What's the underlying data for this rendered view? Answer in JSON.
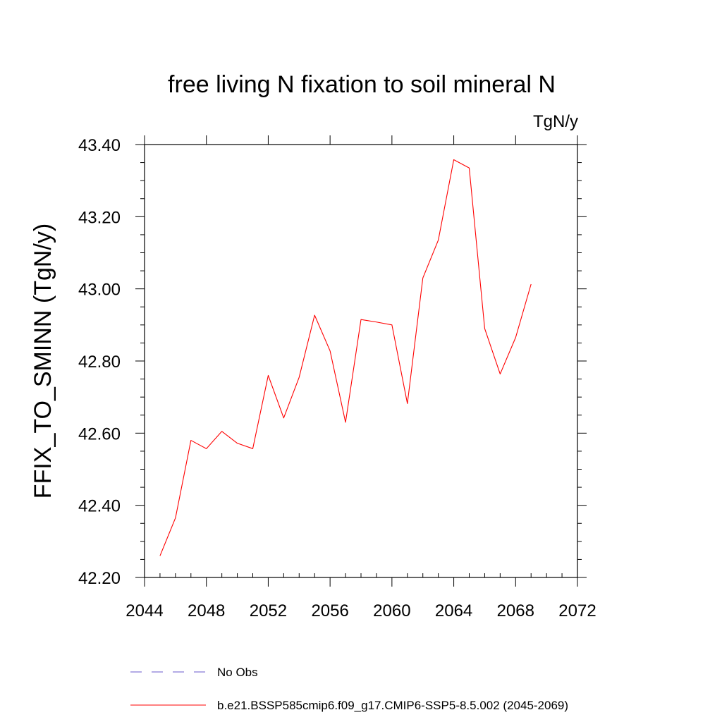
{
  "chart_data": {
    "type": "line",
    "title": "free living N fixation to soil mineral N",
    "units": "TgN/y",
    "ylabel": "FFIX_TO_SMINN  (TgN/y)",
    "xlabel": "",
    "xlim": [
      2044,
      2072
    ],
    "ylim": [
      42.2,
      43.4
    ],
    "x_ticks": [
      "2044",
      "2048",
      "2052",
      "2056",
      "2060",
      "2064",
      "2068",
      "2072"
    ],
    "y_ticks": [
      "42.20",
      "42.40",
      "42.60",
      "42.80",
      "43.00",
      "43.20",
      "43.40"
    ],
    "x_tick_values": [
      2044,
      2048,
      2052,
      2056,
      2060,
      2064,
      2068,
      2072
    ],
    "y_tick_values": [
      42.2,
      42.4,
      42.6,
      42.8,
      43.0,
      43.2,
      43.4
    ],
    "grid": false,
    "series": [
      {
        "name": "b.e21.BSSP585cmip6.f09_g17.CMIP6-SSP5-8.5.002 (2045-2069)",
        "color": "#ff0000",
        "style": "solid",
        "x": [
          2045,
          2046,
          2047,
          2048,
          2049,
          2050,
          2051,
          2052,
          2053,
          2054,
          2055,
          2056,
          2057,
          2058,
          2059,
          2060,
          2061,
          2062,
          2063,
          2064,
          2065,
          2066,
          2067,
          2068,
          2069
        ],
        "y": [
          42.26,
          42.365,
          42.58,
          42.557,
          42.605,
          42.572,
          42.557,
          42.76,
          42.642,
          42.755,
          42.927,
          42.828,
          42.63,
          42.915,
          42.908,
          42.9,
          42.682,
          43.03,
          43.135,
          43.358,
          43.335,
          42.89,
          42.764,
          42.865,
          43.013
        ]
      }
    ],
    "legend": {
      "position": "bottom",
      "entries": [
        {
          "label": "No Obs",
          "color": "#6a5acd",
          "style": "dashed"
        },
        {
          "label": "b.e21.BSSP585cmip6.f09_g17.CMIP6-SSP5-8.5.002 (2045-2069)",
          "color": "#ff0000",
          "style": "solid"
        }
      ]
    }
  }
}
